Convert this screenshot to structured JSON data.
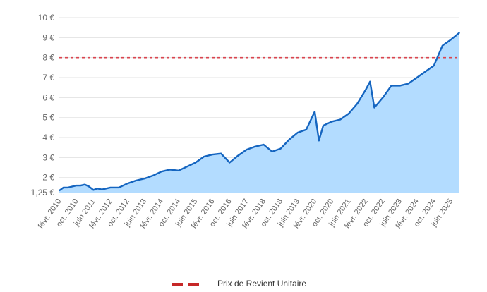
{
  "chart_data": {
    "type": "area",
    "title": "",
    "xlabel": "",
    "ylabel": "",
    "x_start": "2010-02",
    "x_end": "2025-10",
    "ylim": [
      1.25,
      10
    ],
    "grid": true,
    "legend_position": "bottom",
    "y_ticks": [
      {
        "value": 1.25,
        "label": "1,25 €"
      },
      {
        "value": 2,
        "label": "2 €"
      },
      {
        "value": 3,
        "label": "3 €"
      },
      {
        "value": 4,
        "label": "4 €"
      },
      {
        "value": 5,
        "label": "5 €"
      },
      {
        "value": 6,
        "label": "6 €"
      },
      {
        "value": 7,
        "label": "7 €"
      },
      {
        "value": 8,
        "label": "8 €"
      },
      {
        "value": 9,
        "label": "9 €"
      },
      {
        "value": 10,
        "label": "10 €"
      }
    ],
    "x_ticks": [
      {
        "date": "2010-02",
        "label": "févr. 2010"
      },
      {
        "date": "2010-10",
        "label": "oct. 2010"
      },
      {
        "date": "2011-06",
        "label": "juin 2011"
      },
      {
        "date": "2012-02",
        "label": "févr. 2012"
      },
      {
        "date": "2012-10",
        "label": "oct. 2012"
      },
      {
        "date": "2013-06",
        "label": "juin 2013"
      },
      {
        "date": "2014-02",
        "label": "févr. 2014"
      },
      {
        "date": "2014-10",
        "label": "oct. 2014"
      },
      {
        "date": "2015-06",
        "label": "juin 2015"
      },
      {
        "date": "2016-02",
        "label": "févr. 2016"
      },
      {
        "date": "2016-10",
        "label": "oct. 2016"
      },
      {
        "date": "2017-06",
        "label": "juin 2017"
      },
      {
        "date": "2018-02",
        "label": "févr. 2018"
      },
      {
        "date": "2018-10",
        "label": "oct. 2018"
      },
      {
        "date": "2019-06",
        "label": "juin 2019"
      },
      {
        "date": "2020-02",
        "label": "févr. 2020"
      },
      {
        "date": "2020-10",
        "label": "oct. 2020"
      },
      {
        "date": "2021-06",
        "label": "juin 2021"
      },
      {
        "date": "2022-02",
        "label": "févr. 2022"
      },
      {
        "date": "2022-10",
        "label": "oct. 2022"
      },
      {
        "date": "2023-06",
        "label": "juin 2023"
      },
      {
        "date": "2024-02",
        "label": "févr. 2024"
      },
      {
        "date": "2024-10",
        "label": "oct. 2024"
      },
      {
        "date": "2025-06",
        "label": "juin 2025"
      }
    ],
    "series": [
      {
        "color": "#1565c0",
        "fill": "#b3dcff",
        "points": [
          {
            "x": "2010-02",
            "y": 1.35
          },
          {
            "x": "2010-04",
            "y": 1.5
          },
          {
            "x": "2010-06",
            "y": 1.5
          },
          {
            "x": "2010-08",
            "y": 1.55
          },
          {
            "x": "2010-10",
            "y": 1.6
          },
          {
            "x": "2010-12",
            "y": 1.6
          },
          {
            "x": "2011-02",
            "y": 1.65
          },
          {
            "x": "2011-04",
            "y": 1.55
          },
          {
            "x": "2011-06",
            "y": 1.38
          },
          {
            "x": "2011-08",
            "y": 1.45
          },
          {
            "x": "2011-10",
            "y": 1.4
          },
          {
            "x": "2011-12",
            "y": 1.45
          },
          {
            "x": "2012-02",
            "y": 1.5
          },
          {
            "x": "2012-06",
            "y": 1.5
          },
          {
            "x": "2012-10",
            "y": 1.7
          },
          {
            "x": "2013-02",
            "y": 1.85
          },
          {
            "x": "2013-06",
            "y": 1.95
          },
          {
            "x": "2013-10",
            "y": 2.1
          },
          {
            "x": "2014-02",
            "y": 2.3
          },
          {
            "x": "2014-06",
            "y": 2.4
          },
          {
            "x": "2014-10",
            "y": 2.35
          },
          {
            "x": "2015-02",
            "y": 2.55
          },
          {
            "x": "2015-06",
            "y": 2.75
          },
          {
            "x": "2015-10",
            "y": 3.05
          },
          {
            "x": "2016-02",
            "y": 3.15
          },
          {
            "x": "2016-06",
            "y": 3.2
          },
          {
            "x": "2016-10",
            "y": 2.75
          },
          {
            "x": "2017-02",
            "y": 3.1
          },
          {
            "x": "2017-06",
            "y": 3.4
          },
          {
            "x": "2017-10",
            "y": 3.55
          },
          {
            "x": "2018-02",
            "y": 3.65
          },
          {
            "x": "2018-06",
            "y": 3.3
          },
          {
            "x": "2018-10",
            "y": 3.45
          },
          {
            "x": "2019-02",
            "y": 3.9
          },
          {
            "x": "2019-06",
            "y": 4.25
          },
          {
            "x": "2019-10",
            "y": 4.4
          },
          {
            "x": "2020-02",
            "y": 5.3
          },
          {
            "x": "2020-04",
            "y": 3.85
          },
          {
            "x": "2020-06",
            "y": 4.6
          },
          {
            "x": "2020-10",
            "y": 4.8
          },
          {
            "x": "2021-02",
            "y": 4.9
          },
          {
            "x": "2021-06",
            "y": 5.2
          },
          {
            "x": "2021-10",
            "y": 5.7
          },
          {
            "x": "2022-02",
            "y": 6.4
          },
          {
            "x": "2022-04",
            "y": 6.8
          },
          {
            "x": "2022-06",
            "y": 5.5
          },
          {
            "x": "2022-10",
            "y": 6.0
          },
          {
            "x": "2023-02",
            "y": 6.6
          },
          {
            "x": "2023-06",
            "y": 6.6
          },
          {
            "x": "2023-10",
            "y": 6.7
          },
          {
            "x": "2024-02",
            "y": 7.0
          },
          {
            "x": "2024-06",
            "y": 7.3
          },
          {
            "x": "2024-10",
            "y": 7.6
          },
          {
            "x": "2025-02",
            "y": 8.6
          },
          {
            "x": "2025-06",
            "y": 8.9
          },
          {
            "x": "2025-10",
            "y": 9.25
          }
        ]
      }
    ],
    "reference_lines": [
      {
        "name": "Prix de Revient Unitaire",
        "y": 8.0,
        "color": "#d9454f",
        "style": "dashed"
      }
    ],
    "legend": [
      {
        "label": "Prix de Revient Unitaire",
        "color": "#c62828",
        "style": "dashed"
      }
    ]
  }
}
